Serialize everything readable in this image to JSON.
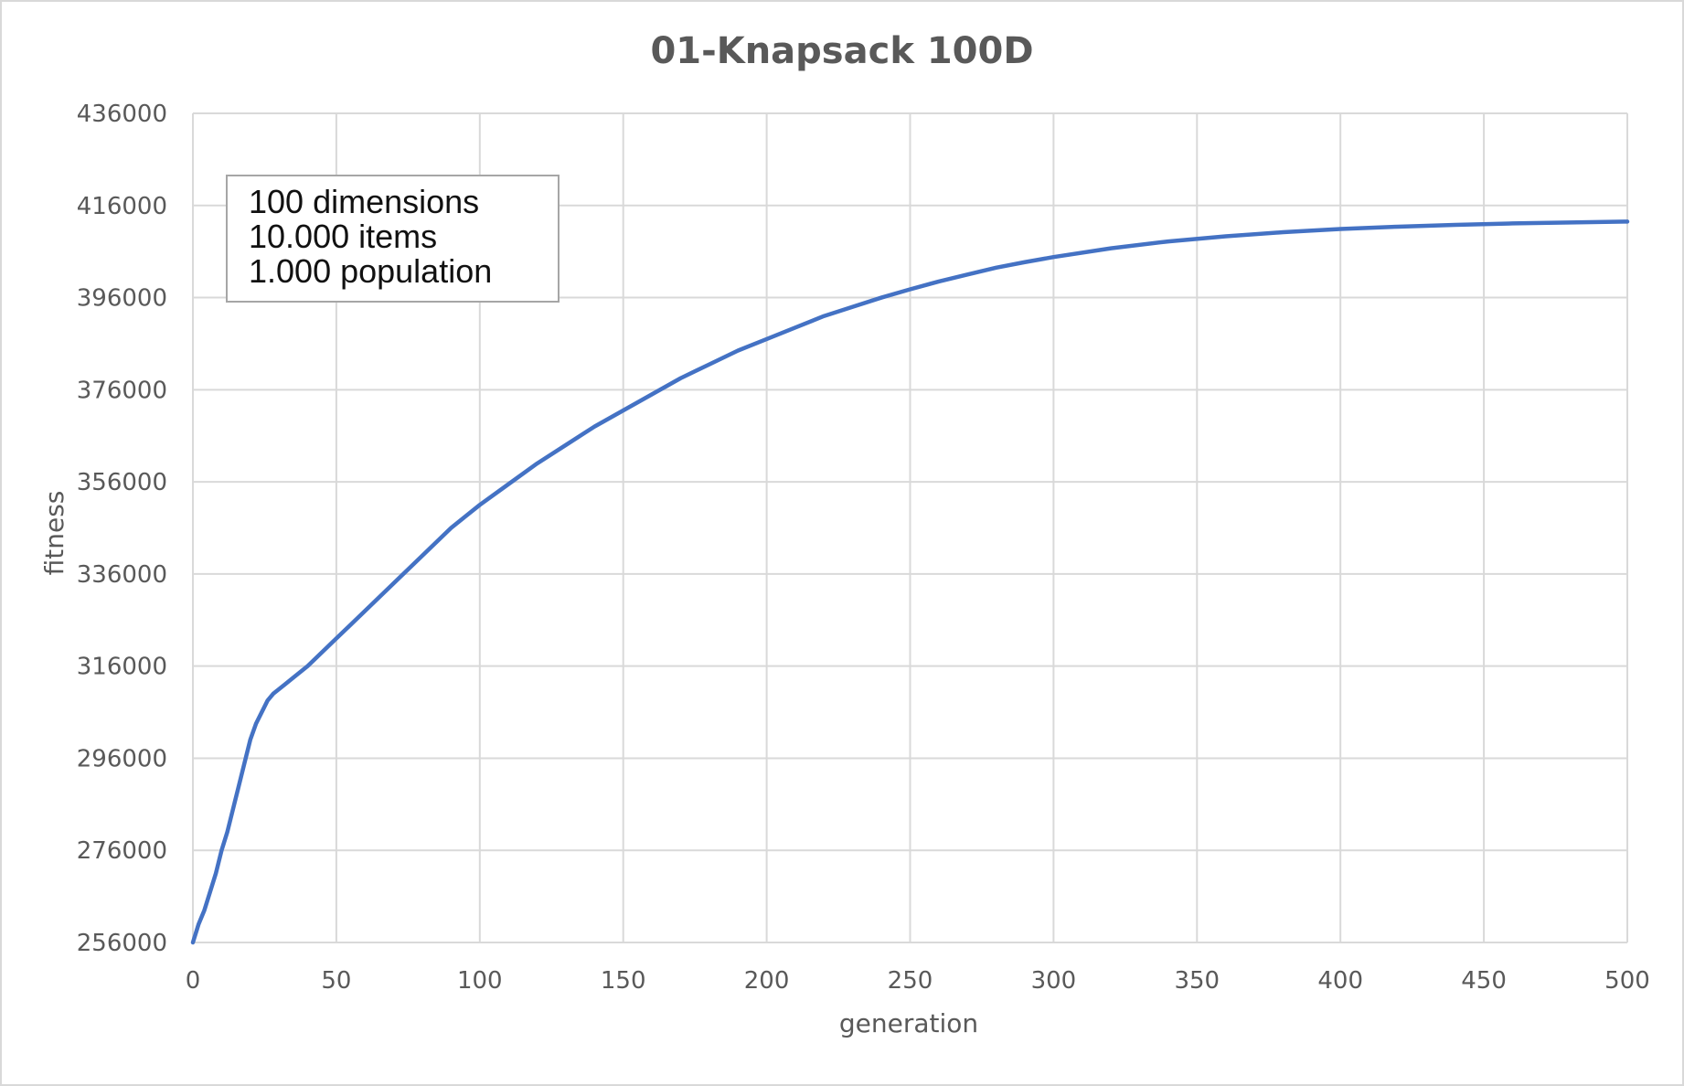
{
  "chart_data": {
    "type": "line",
    "title": "01-Knapsack 100D",
    "xlabel": "generation",
    "ylabel": "fitness",
    "xlim": [
      0,
      500
    ],
    "ylim": [
      256000,
      436000
    ],
    "x_ticks": [
      0,
      50,
      100,
      150,
      200,
      250,
      300,
      350,
      400,
      450,
      500
    ],
    "y_ticks": [
      256000,
      276000,
      296000,
      316000,
      336000,
      356000,
      376000,
      396000,
      416000,
      436000
    ],
    "grid": true,
    "legend": "none",
    "colors": {
      "series": "#4472c4",
      "grid": "#d9d9d9",
      "text": "#595959",
      "annotation_border": "#a6a6a6"
    },
    "annotation": {
      "placement": "top-left",
      "lines": [
        "100 dimensions",
        "10.000 items",
        "1.000 population"
      ]
    },
    "series": [
      {
        "x": [
          0,
          2,
          4,
          6,
          8,
          10,
          12,
          14,
          16,
          18,
          20,
          22,
          24,
          26,
          28,
          30,
          32,
          35,
          40,
          45,
          50,
          55,
          60,
          65,
          70,
          75,
          80,
          85,
          90,
          95,
          100,
          110,
          120,
          130,
          140,
          150,
          160,
          170,
          180,
          190,
          200,
          210,
          220,
          230,
          240,
          250,
          260,
          270,
          280,
          290,
          300,
          320,
          340,
          360,
          380,
          400,
          420,
          440,
          460,
          480,
          500
        ],
        "values": [
          256000,
          260000,
          263000,
          267000,
          271000,
          276000,
          280000,
          285000,
          290000,
          295000,
          300000,
          303500,
          306000,
          308500,
          310000,
          311000,
          312000,
          313500,
          316000,
          319000,
          322000,
          325000,
          328000,
          331000,
          334000,
          337000,
          340000,
          343000,
          346000,
          348500,
          351000,
          355500,
          360000,
          364000,
          368000,
          371500,
          375000,
          378500,
          381500,
          384500,
          387000,
          389500,
          392000,
          394000,
          396000,
          397800,
          399500,
          401000,
          402500,
          403700,
          404800,
          406700,
          408200,
          409300,
          410200,
          410900,
          411400,
          411800,
          412100,
          412300,
          412500
        ]
      }
    ]
  }
}
